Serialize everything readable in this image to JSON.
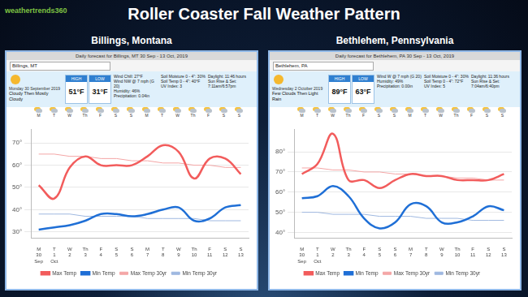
{
  "logo": "weathertrends360",
  "title": "Roller Coaster Fall Weather Pattern",
  "chart_data": [
    {
      "type": "line",
      "title": "Billings, Montana",
      "subtitle": "Daily forecast for Billings, MT 30 Sep - 13 Oct, 2019",
      "search": "Billings, MT",
      "date": "Monday 30 September 2019",
      "condition": "Cloudy Then Mostly Cloudy",
      "high_label": "HIGH",
      "high": "51°F",
      "low_label": "LOW",
      "low": "31°F",
      "details": [
        [
          "Wind Chill: 27°F",
          "Wind NW @ 7 mph (G 20)",
          "Humidity: 46%",
          "Precipitation: 0.04in"
        ],
        [
          "Soil Moisture 0 - 4\": 30%",
          "Soil Temp 0 - 4\": 40°F",
          "UV Index: 3"
        ],
        [
          "Daylight: 11:46 hours",
          "Sun Rise & Set: 7:11am/6:57pm"
        ]
      ],
      "categories": [
        [
          "M",
          "30",
          "Sep"
        ],
        [
          "T",
          "1",
          "Oct"
        ],
        [
          "W",
          "2"
        ],
        [
          "Th",
          "3"
        ],
        [
          "F",
          "4"
        ],
        [
          "S",
          "5"
        ],
        [
          "S",
          "6"
        ],
        [
          "M",
          "7"
        ],
        [
          "T",
          "8"
        ],
        [
          "W",
          "9"
        ],
        [
          "Th",
          "10"
        ],
        [
          "F",
          "11"
        ],
        [
          "S",
          "12"
        ],
        [
          "S",
          "13"
        ]
      ],
      "series": [
        {
          "name": "Max Temp",
          "color": "#f25c5c",
          "line_style": "solid",
          "marker": "none",
          "values": [
            51,
            45,
            59,
            64,
            60,
            60,
            60,
            64,
            69,
            66,
            54,
            63,
            63,
            56
          ]
        },
        {
          "name": "Min Temp",
          "color": "#1f6fd6",
          "line_style": "solid",
          "marker": "none",
          "values": [
            31,
            32,
            33,
            35,
            38,
            38,
            37,
            38,
            40,
            41,
            35,
            36,
            41,
            42
          ]
        },
        {
          "name": "Max Temp 30yr",
          "color": "#f4a6a6",
          "line_style": "solid",
          "marker": "none",
          "values": [
            65,
            65,
            64,
            64,
            63,
            63,
            62,
            62,
            61,
            61,
            60,
            60,
            59,
            59
          ]
        },
        {
          "name": "Min Temp 30yr",
          "color": "#9fb8e0",
          "line_style": "solid",
          "marker": "none",
          "values": [
            38,
            38,
            38,
            37,
            37,
            37,
            37,
            36,
            36,
            36,
            36,
            35,
            35,
            35
          ]
        }
      ],
      "ylim": [
        27,
        76
      ],
      "yticks": [
        {
          "value": 30,
          "label": "30°"
        },
        {
          "value": 40,
          "label": "40°"
        },
        {
          "value": 50,
          "label": "50°"
        },
        {
          "value": 60,
          "label": "60°"
        },
        {
          "value": 70,
          "label": "70°"
        }
      ],
      "grid": true,
      "legend": "bottom"
    },
    {
      "type": "line",
      "title": "Bethlehem, Pennsylvania",
      "subtitle": "Daily forecast for Bethlehem, PA 30 Sep - 13 Oct, 2019",
      "search": "Bethlehem, PA",
      "date": "Wednesday 2 October 2019",
      "condition": "Few Clouds Then Light Rain",
      "high_label": "HIGH",
      "high": "89°F",
      "low_label": "LOW",
      "low": "63°F",
      "details": [
        [
          "Wind W @ 7 mph (G 20)",
          "Humidity: 49%",
          "Precipitation: 0.00in"
        ],
        [
          "Soil Moisture 0 - 4\": 30%",
          "Soil Temp 0 - 4\": 72°F",
          "UV Index: 5"
        ],
        [
          "Daylight: 11:36 hours",
          "Sun Rise & Set: 7:04am/6:40pm"
        ]
      ],
      "categories": [
        [
          "M",
          "30",
          "Sep"
        ],
        [
          "T",
          "1",
          "Oct"
        ],
        [
          "W",
          "2"
        ],
        [
          "Th",
          "3"
        ],
        [
          "F",
          "4"
        ],
        [
          "S",
          "5"
        ],
        [
          "S",
          "6"
        ],
        [
          "M",
          "7"
        ],
        [
          "T",
          "8"
        ],
        [
          "W",
          "9"
        ],
        [
          "Th",
          "10"
        ],
        [
          "F",
          "11"
        ],
        [
          "S",
          "12"
        ],
        [
          "S",
          "13"
        ]
      ],
      "series": [
        {
          "name": "Max Temp",
          "color": "#f25c5c",
          "line_style": "solid",
          "marker": "none",
          "values": [
            69,
            74,
            89,
            66,
            66,
            62,
            66,
            69,
            68,
            68,
            66,
            66,
            66,
            69
          ]
        },
        {
          "name": "Min Temp",
          "color": "#1f6fd6",
          "line_style": "solid",
          "marker": "none",
          "values": [
            57,
            58,
            63,
            58,
            47,
            42,
            45,
            54,
            53,
            45,
            45,
            48,
            53,
            51
          ]
        },
        {
          "name": "Max Temp 30yr",
          "color": "#f4a6a6",
          "line_style": "solid",
          "marker": "none",
          "values": [
            72,
            72,
            71,
            71,
            70,
            70,
            69,
            69,
            68,
            68,
            67,
            67,
            66,
            66
          ]
        },
        {
          "name": "Min Temp 30yr",
          "color": "#9fb8e0",
          "line_style": "solid",
          "marker": "none",
          "values": [
            50,
            50,
            49,
            49,
            49,
            48,
            48,
            48,
            47,
            47,
            47,
            46,
            46,
            46
          ]
        }
      ],
      "ylim": [
        37,
        91
      ],
      "yticks": [
        {
          "value": 40,
          "label": "40°"
        },
        {
          "value": 50,
          "label": "50°"
        },
        {
          "value": 60,
          "label": "60°"
        },
        {
          "value": 70,
          "label": "70°"
        },
        {
          "value": 80,
          "label": "80°"
        }
      ],
      "grid": true,
      "legend": "bottom"
    }
  ]
}
